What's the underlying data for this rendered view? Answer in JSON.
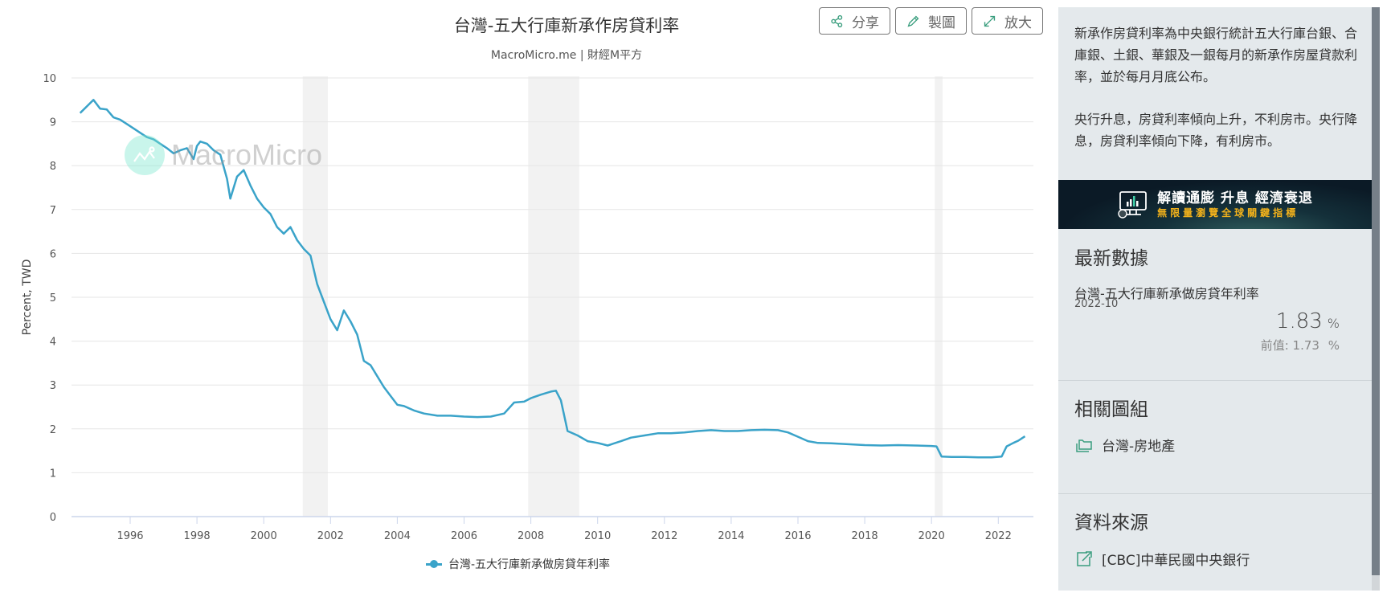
{
  "header": {
    "title": "台灣-五大行庫新承作房貸利率",
    "subtitle": "MacroMicro.me | 財經M平方",
    "buttons": {
      "share": "分享",
      "draw": "製圖",
      "expand": "放大"
    }
  },
  "watermark": "MacroMicro",
  "colors": {
    "series": "#3aa3c9",
    "recession": "#f2f2f2",
    "icon_accent": "#3a9e7e",
    "sidebar_bg": "#e4e9ec"
  },
  "chart_data": {
    "type": "line",
    "title": "台灣-五大行庫新承作房貸利率",
    "subtitle": "MacroMicro.me | 財經M平方",
    "xlabel": "",
    "ylabel": "Percent, TWD",
    "ylim": [
      0,
      10
    ],
    "yticks": [
      "0",
      "1",
      "2",
      "3",
      "4",
      "5",
      "6",
      "7",
      "8",
      "9",
      "10"
    ],
    "xticks": [
      "1996",
      "1998",
      "2000",
      "2002",
      "2004",
      "2006",
      "2008",
      "2010",
      "2012",
      "2014",
      "2016",
      "2018",
      "2020",
      "2022"
    ],
    "grid": true,
    "legend_position": "bottom",
    "recession_bands": [
      [
        2001.17,
        2001.92
      ],
      [
        2007.92,
        2009.45
      ],
      [
        2020.1,
        2020.33
      ]
    ],
    "series": [
      {
        "name": "台灣-五大行庫新承做房貸年利率",
        "x": [
          1994.5,
          1994.7,
          1994.9,
          1995.1,
          1995.3,
          1995.5,
          1995.7,
          1995.9,
          1996.1,
          1996.3,
          1996.5,
          1996.7,
          1996.9,
          1997.1,
          1997.3,
          1997.5,
          1997.7,
          1997.9,
          1998.0,
          1998.1,
          1998.3,
          1998.5,
          1998.7,
          1998.9,
          1999.0,
          1999.2,
          1999.4,
          1999.6,
          1999.8,
          2000.0,
          2000.2,
          2000.4,
          2000.6,
          2000.8,
          2001.0,
          2001.2,
          2001.4,
          2001.6,
          2001.8,
          2002.0,
          2002.2,
          2002.4,
          2002.6,
          2002.8,
          2003.0,
          2003.2,
          2003.4,
          2003.6,
          2003.8,
          2004.0,
          2004.2,
          2004.5,
          2004.8,
          2005.2,
          2005.6,
          2006.0,
          2006.4,
          2006.8,
          2007.2,
          2007.5,
          2007.8,
          2008.0,
          2008.3,
          2008.6,
          2008.75,
          2008.9,
          2009.1,
          2009.4,
          2009.7,
          2010.0,
          2010.3,
          2010.7,
          2011.0,
          2011.4,
          2011.8,
          2012.2,
          2012.6,
          2013.0,
          2013.4,
          2013.8,
          2014.2,
          2014.6,
          2015.0,
          2015.4,
          2015.7,
          2016.0,
          2016.3,
          2016.6,
          2017.0,
          2017.5,
          2018.0,
          2018.5,
          2019.0,
          2019.5,
          2020.0,
          2020.15,
          2020.3,
          2020.6,
          2021.0,
          2021.4,
          2021.8,
          2022.1,
          2022.25,
          2022.45,
          2022.6,
          2022.8
        ],
        "values": [
          9.2,
          9.35,
          9.5,
          9.3,
          9.28,
          9.1,
          9.05,
          8.95,
          8.85,
          8.75,
          8.65,
          8.6,
          8.5,
          8.4,
          8.28,
          8.35,
          8.4,
          8.15,
          8.45,
          8.55,
          8.5,
          8.35,
          8.25,
          7.7,
          7.25,
          7.75,
          7.9,
          7.55,
          7.25,
          7.05,
          6.9,
          6.6,
          6.45,
          6.6,
          6.3,
          6.1,
          5.95,
          5.3,
          4.9,
          4.5,
          4.25,
          4.7,
          4.45,
          4.15,
          3.55,
          3.45,
          3.2,
          2.95,
          2.75,
          2.55,
          2.52,
          2.42,
          2.35,
          2.3,
          2.3,
          2.28,
          2.27,
          2.28,
          2.35,
          2.6,
          2.62,
          2.7,
          2.78,
          2.85,
          2.87,
          2.65,
          1.95,
          1.85,
          1.72,
          1.68,
          1.62,
          1.72,
          1.8,
          1.85,
          1.9,
          1.9,
          1.92,
          1.95,
          1.97,
          1.95,
          1.95,
          1.97,
          1.98,
          1.97,
          1.92,
          1.82,
          1.72,
          1.68,
          1.67,
          1.65,
          1.63,
          1.62,
          1.63,
          1.62,
          1.61,
          1.6,
          1.37,
          1.36,
          1.36,
          1.35,
          1.35,
          1.37,
          1.6,
          1.68,
          1.73,
          1.83
        ]
      }
    ]
  },
  "legend": {
    "label": "台灣-五大行庫新承做房貸年利率"
  },
  "sidebar": {
    "description": [
      "新承作房貸利率為中央銀行統計五大行庫台銀、合庫銀、土銀、華銀及一銀每月的新承作房屋貸款利率，並於每月月底公布。",
      "央行升息，房貸利率傾向上升，不利房市。央行降息，房貸利率傾向下降，有利房市。"
    ],
    "banner": {
      "line1": "解讀通膨 升息 經濟衰退",
      "line2": "無限量瀏覽全球關鍵指標"
    },
    "latest": {
      "title": "最新數據",
      "series_name": "台灣-五大行庫新承做房貸年利率",
      "date": "2022-10",
      "value": "1.83",
      "unit": "%",
      "prev_label": "前值:",
      "prev_value": "1.73",
      "prev_unit": "%"
    },
    "related": {
      "title": "相關圖組",
      "items": [
        {
          "label": "台灣-房地產",
          "icon": "folder-icon"
        }
      ]
    },
    "source": {
      "title": "資料來源",
      "items": [
        {
          "label": "[CBC]中華民國中央銀行",
          "icon": "external-link-icon"
        }
      ]
    }
  }
}
